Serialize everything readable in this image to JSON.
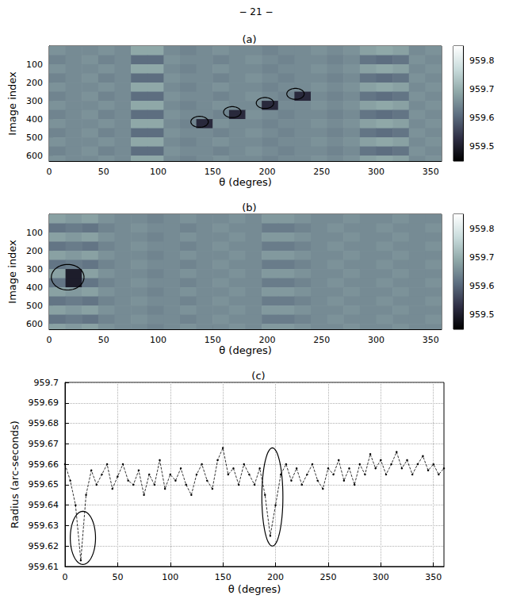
{
  "page_header": "− 21 −",
  "chart_data": [
    {
      "type": "heatmap",
      "title": "(a)",
      "x_label": "θ (degres)",
      "y_label": "Image index",
      "x": [
        0,
        15,
        30,
        45,
        60,
        75,
        90,
        105,
        120,
        135,
        150,
        165,
        180,
        195,
        210,
        225,
        240,
        255,
        270,
        285,
        300,
        315,
        330,
        345
      ],
      "y": [
        0,
        50,
        100,
        150,
        200,
        250,
        300,
        350,
        400,
        450,
        500,
        550,
        600
      ],
      "cells": [
        [
          959.66,
          959.65,
          959.65,
          959.66,
          959.65,
          959.69,
          959.69,
          959.65,
          959.64,
          959.65,
          959.66,
          959.65,
          959.65,
          959.64,
          959.65,
          959.65,
          959.66,
          959.65,
          959.66,
          959.68,
          959.69,
          959.68,
          959.65,
          959.66
        ],
        [
          959.64,
          959.65,
          959.66,
          959.64,
          959.65,
          959.61,
          959.61,
          959.66,
          959.65,
          959.65,
          959.64,
          959.65,
          959.66,
          959.65,
          959.64,
          959.65,
          959.65,
          959.64,
          959.65,
          959.62,
          959.61,
          959.62,
          959.66,
          959.65
        ],
        [
          959.66,
          959.65,
          959.65,
          959.66,
          959.65,
          959.69,
          959.69,
          959.65,
          959.64,
          959.65,
          959.66,
          959.65,
          959.65,
          959.64,
          959.65,
          959.65,
          959.66,
          959.65,
          959.66,
          959.68,
          959.69,
          959.68,
          959.65,
          959.66
        ],
        [
          959.64,
          959.65,
          959.66,
          959.64,
          959.65,
          959.61,
          959.61,
          959.66,
          959.65,
          959.65,
          959.64,
          959.65,
          959.66,
          959.65,
          959.64,
          959.65,
          959.65,
          959.64,
          959.65,
          959.62,
          959.61,
          959.62,
          959.66,
          959.65
        ],
        [
          959.66,
          959.65,
          959.65,
          959.66,
          959.65,
          959.69,
          959.69,
          959.65,
          959.64,
          959.65,
          959.66,
          959.65,
          959.65,
          959.64,
          959.65,
          959.65,
          959.66,
          959.65,
          959.66,
          959.68,
          959.69,
          959.68,
          959.65,
          959.66
        ],
        [
          959.64,
          959.65,
          959.66,
          959.64,
          959.65,
          959.61,
          959.61,
          959.66,
          959.65,
          959.65,
          959.64,
          959.65,
          959.66,
          959.65,
          959.64,
          959.52,
          959.65,
          959.64,
          959.65,
          959.62,
          959.61,
          959.62,
          959.66,
          959.65
        ],
        [
          959.66,
          959.65,
          959.65,
          959.66,
          959.65,
          959.69,
          959.69,
          959.65,
          959.64,
          959.65,
          959.66,
          959.65,
          959.65,
          959.52,
          959.65,
          959.65,
          959.66,
          959.65,
          959.66,
          959.68,
          959.69,
          959.68,
          959.65,
          959.66
        ],
        [
          959.64,
          959.65,
          959.66,
          959.64,
          959.65,
          959.61,
          959.61,
          959.66,
          959.65,
          959.65,
          959.64,
          959.52,
          959.66,
          959.65,
          959.64,
          959.65,
          959.65,
          959.64,
          959.65,
          959.62,
          959.61,
          959.62,
          959.66,
          959.65
        ],
        [
          959.66,
          959.65,
          959.65,
          959.66,
          959.65,
          959.69,
          959.69,
          959.65,
          959.64,
          959.52,
          959.66,
          959.65,
          959.65,
          959.64,
          959.65,
          959.65,
          959.66,
          959.65,
          959.66,
          959.68,
          959.69,
          959.68,
          959.65,
          959.66
        ],
        [
          959.64,
          959.65,
          959.66,
          959.64,
          959.65,
          959.61,
          959.61,
          959.66,
          959.65,
          959.65,
          959.64,
          959.65,
          959.66,
          959.65,
          959.64,
          959.65,
          959.65,
          959.64,
          959.65,
          959.62,
          959.61,
          959.62,
          959.66,
          959.65
        ],
        [
          959.66,
          959.65,
          959.65,
          959.66,
          959.65,
          959.69,
          959.69,
          959.65,
          959.64,
          959.65,
          959.66,
          959.65,
          959.65,
          959.64,
          959.65,
          959.65,
          959.66,
          959.65,
          959.66,
          959.68,
          959.69,
          959.68,
          959.65,
          959.66
        ],
        [
          959.64,
          959.65,
          959.66,
          959.64,
          959.65,
          959.61,
          959.61,
          959.66,
          959.65,
          959.65,
          959.64,
          959.65,
          959.66,
          959.65,
          959.64,
          959.65,
          959.65,
          959.64,
          959.65,
          959.62,
          959.61,
          959.62,
          959.66,
          959.65
        ],
        [
          959.66,
          959.65,
          959.65,
          959.66,
          959.65,
          959.69,
          959.69,
          959.65,
          959.64,
          959.65,
          959.66,
          959.65,
          959.65,
          959.64,
          959.65,
          959.65,
          959.66,
          959.65,
          959.66,
          959.68,
          959.69,
          959.68,
          959.65,
          959.66
        ]
      ],
      "xlim": [
        0,
        360
      ],
      "ylim": [
        0,
        630
      ],
      "xticks": [
        0,
        50,
        100,
        150,
        200,
        250,
        300,
        350
      ],
      "yticks": [
        100,
        200,
        300,
        400,
        500,
        600
      ],
      "colorbar": {
        "range": [
          959.45,
          959.85
        ],
        "ticks": [
          959.5,
          959.6,
          959.7,
          959.8
        ]
      },
      "circles": [
        {
          "x": 138,
          "y": 415,
          "rx": 8,
          "ry": 30
        },
        {
          "x": 168,
          "y": 362,
          "rx": 8,
          "ry": 30
        },
        {
          "x": 198,
          "y": 312,
          "rx": 8,
          "ry": 30
        },
        {
          "x": 226,
          "y": 262,
          "rx": 8,
          "ry": 30
        }
      ]
    },
    {
      "type": "heatmap",
      "title": "(b)",
      "x_label": "θ (degres)",
      "y_label": "Image index",
      "x": [
        0,
        15,
        30,
        45,
        60,
        75,
        90,
        105,
        120,
        135,
        150,
        165,
        180,
        195,
        210,
        225,
        240,
        255,
        270,
        285,
        300,
        315,
        330,
        345
      ],
      "y": [
        0,
        50,
        100,
        150,
        200,
        250,
        300,
        350,
        400,
        450,
        500,
        550,
        600
      ],
      "cells": [
        [
          959.68,
          959.67,
          959.68,
          959.66,
          959.65,
          959.65,
          959.64,
          959.65,
          959.66,
          959.65,
          959.65,
          959.66,
          959.65,
          959.67,
          959.67,
          959.66,
          959.65,
          959.65,
          959.66,
          959.65,
          959.65,
          959.66,
          959.65,
          959.65
        ],
        [
          959.62,
          959.63,
          959.62,
          959.64,
          959.65,
          959.66,
          959.65,
          959.65,
          959.64,
          959.65,
          959.66,
          959.65,
          959.65,
          959.63,
          959.63,
          959.64,
          959.65,
          959.66,
          959.65,
          959.65,
          959.66,
          959.65,
          959.65,
          959.66
        ],
        [
          959.68,
          959.67,
          959.68,
          959.66,
          959.65,
          959.65,
          959.64,
          959.65,
          959.66,
          959.65,
          959.65,
          959.66,
          959.65,
          959.67,
          959.67,
          959.66,
          959.65,
          959.65,
          959.66,
          959.65,
          959.65,
          959.66,
          959.65,
          959.65
        ],
        [
          959.62,
          959.63,
          959.62,
          959.64,
          959.65,
          959.66,
          959.65,
          959.65,
          959.64,
          959.65,
          959.66,
          959.65,
          959.65,
          959.63,
          959.63,
          959.64,
          959.65,
          959.66,
          959.65,
          959.65,
          959.66,
          959.65,
          959.65,
          959.66
        ],
        [
          959.68,
          959.67,
          959.68,
          959.66,
          959.65,
          959.65,
          959.64,
          959.65,
          959.66,
          959.65,
          959.65,
          959.66,
          959.65,
          959.67,
          959.67,
          959.66,
          959.65,
          959.65,
          959.66,
          959.65,
          959.65,
          959.66,
          959.65,
          959.65
        ],
        [
          959.62,
          959.63,
          959.62,
          959.64,
          959.65,
          959.66,
          959.65,
          959.65,
          959.64,
          959.65,
          959.66,
          959.65,
          959.65,
          959.63,
          959.63,
          959.64,
          959.65,
          959.66,
          959.65,
          959.65,
          959.66,
          959.65,
          959.65,
          959.66
        ],
        [
          959.68,
          959.5,
          959.68,
          959.66,
          959.65,
          959.65,
          959.64,
          959.65,
          959.66,
          959.65,
          959.65,
          959.66,
          959.65,
          959.67,
          959.67,
          959.66,
          959.65,
          959.65,
          959.66,
          959.65,
          959.65,
          959.66,
          959.65,
          959.65
        ],
        [
          959.62,
          959.5,
          959.62,
          959.64,
          959.65,
          959.66,
          959.65,
          959.65,
          959.64,
          959.65,
          959.66,
          959.65,
          959.65,
          959.63,
          959.63,
          959.64,
          959.65,
          959.66,
          959.65,
          959.65,
          959.66,
          959.65,
          959.65,
          959.66
        ],
        [
          959.68,
          959.67,
          959.68,
          959.66,
          959.65,
          959.65,
          959.64,
          959.65,
          959.66,
          959.65,
          959.65,
          959.66,
          959.65,
          959.67,
          959.67,
          959.66,
          959.65,
          959.65,
          959.66,
          959.65,
          959.65,
          959.66,
          959.65,
          959.65
        ],
        [
          959.62,
          959.63,
          959.62,
          959.64,
          959.65,
          959.66,
          959.65,
          959.65,
          959.64,
          959.65,
          959.66,
          959.65,
          959.65,
          959.63,
          959.63,
          959.64,
          959.65,
          959.66,
          959.65,
          959.65,
          959.66,
          959.65,
          959.65,
          959.66
        ],
        [
          959.68,
          959.67,
          959.68,
          959.66,
          959.65,
          959.65,
          959.64,
          959.65,
          959.66,
          959.65,
          959.65,
          959.66,
          959.65,
          959.67,
          959.67,
          959.66,
          959.65,
          959.65,
          959.66,
          959.65,
          959.65,
          959.66,
          959.65,
          959.65
        ],
        [
          959.62,
          959.63,
          959.62,
          959.64,
          959.65,
          959.66,
          959.65,
          959.65,
          959.64,
          959.65,
          959.66,
          959.65,
          959.65,
          959.63,
          959.63,
          959.64,
          959.65,
          959.66,
          959.65,
          959.65,
          959.66,
          959.65,
          959.65,
          959.66
        ],
        [
          959.68,
          959.67,
          959.68,
          959.66,
          959.65,
          959.65,
          959.64,
          959.65,
          959.66,
          959.65,
          959.65,
          959.66,
          959.65,
          959.67,
          959.67,
          959.66,
          959.65,
          959.65,
          959.66,
          959.65,
          959.65,
          959.66,
          959.65,
          959.65
        ]
      ],
      "xlim": [
        0,
        360
      ],
      "ylim": [
        0,
        630
      ],
      "xticks": [
        0,
        50,
        100,
        150,
        200,
        250,
        300,
        350
      ],
      "yticks": [
        100,
        200,
        300,
        400,
        500,
        600
      ],
      "colorbar": {
        "range": [
          959.45,
          959.85
        ],
        "ticks": [
          959.5,
          959.6,
          959.7,
          959.8
        ]
      },
      "circles": [
        {
          "x": 17,
          "y": 345,
          "rx": 15,
          "ry": 70
        }
      ]
    },
    {
      "type": "line",
      "title": "(c)",
      "x_label": "θ (degres)",
      "y_label": "Radius (arc-seconds)",
      "x": [
        0,
        5,
        10,
        15,
        20,
        25,
        30,
        35,
        40,
        45,
        50,
        55,
        60,
        65,
        70,
        75,
        80,
        85,
        90,
        95,
        100,
        105,
        110,
        115,
        120,
        125,
        130,
        135,
        140,
        145,
        150,
        155,
        160,
        165,
        170,
        175,
        180,
        185,
        190,
        195,
        200,
        205,
        210,
        215,
        220,
        225,
        230,
        235,
        240,
        245,
        250,
        255,
        260,
        265,
        270,
        275,
        280,
        285,
        290,
        295,
        300,
        305,
        310,
        315,
        320,
        325,
        330,
        335,
        340,
        345,
        350,
        355,
        360
      ],
      "values": [
        959.66,
        959.652,
        959.64,
        959.613,
        959.645,
        959.657,
        959.65,
        959.655,
        959.66,
        959.648,
        959.654,
        959.66,
        959.652,
        959.65,
        959.657,
        959.645,
        959.655,
        959.65,
        959.662,
        959.648,
        959.655,
        959.652,
        959.658,
        959.65,
        959.645,
        959.655,
        959.66,
        959.652,
        959.648,
        959.662,
        959.668,
        959.655,
        959.658,
        959.65,
        959.66,
        959.655,
        959.65,
        959.658,
        959.645,
        959.625,
        959.64,
        959.655,
        959.66,
        959.652,
        959.658,
        959.65,
        959.655,
        959.66,
        959.652,
        959.648,
        959.658,
        959.655,
        959.662,
        959.652,
        959.658,
        959.65,
        959.66,
        959.655,
        959.665,
        959.658,
        959.662,
        959.655,
        959.66,
        959.666,
        959.658,
        959.662,
        959.655,
        959.66,
        959.664,
        959.657,
        959.66,
        959.655,
        959.658
      ],
      "color": "#000000",
      "marker": "dot",
      "line_style": "dashed",
      "grid": true,
      "xlim": [
        0,
        360
      ],
      "ylim": [
        959.61,
        959.7
      ],
      "xticks": [
        0,
        50,
        100,
        150,
        200,
        250,
        300,
        350
      ],
      "yticks": [
        959.61,
        959.62,
        959.63,
        959.64,
        959.65,
        959.66,
        959.67,
        959.68,
        959.69,
        959.7
      ],
      "circles": [
        {
          "x": 17,
          "y": 959.624,
          "rx": 12,
          "ry": 0.013
        },
        {
          "x": 197,
          "y": 959.644,
          "rx": 10,
          "ry": 0.024
        }
      ]
    }
  ]
}
